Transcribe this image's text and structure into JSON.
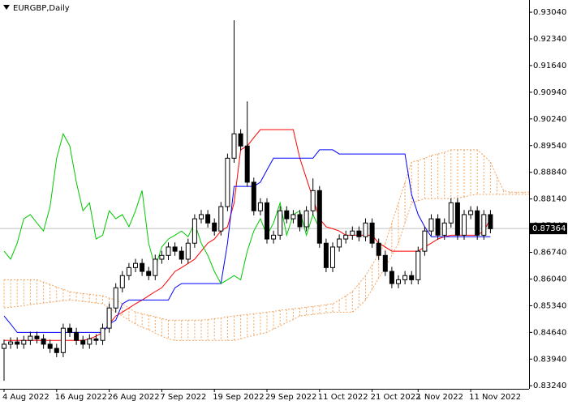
{
  "chart_data": {
    "type": "candlestick",
    "title": "EURGBP,Daily",
    "categories": [
      "4 Aug 2022",
      null,
      null,
      null,
      null,
      null,
      null,
      null,
      "16 Aug 2022",
      null,
      null,
      null,
      null,
      null,
      null,
      null,
      "26 Aug 2022",
      null,
      null,
      null,
      null,
      null,
      null,
      null,
      "7 Sep 2022",
      null,
      null,
      null,
      null,
      null,
      null,
      null,
      "19 Sep 2022",
      null,
      null,
      null,
      null,
      null,
      null,
      null,
      "29 Sep 2022",
      null,
      null,
      null,
      null,
      null,
      null,
      null,
      "11 Oct 2022",
      null,
      null,
      null,
      null,
      null,
      null,
      null,
      "21 Oct 2022",
      null,
      null,
      null,
      null,
      null,
      null,
      "1 Nov 2022",
      null,
      null,
      null,
      null,
      null,
      null,
      null,
      "11 Nov 2022",
      null,
      null,
      null,
      null,
      null,
      null,
      null,
      null,
      null
    ],
    "open": [
      0.8422,
      0.8433,
      0.8439,
      0.8433,
      0.8443,
      0.8454,
      0.8447,
      0.8433,
      0.8422,
      0.8411,
      0.8475,
      0.8464,
      0.8443,
      0.8433,
      0.8447,
      0.8443,
      0.8475,
      0.8528,
      0.8581,
      0.8613,
      0.8634,
      0.8645,
      0.8624,
      0.8613,
      0.8656,
      0.8666,
      0.8688,
      0.8677,
      0.8656,
      0.8698,
      0.8762,
      0.8773,
      0.8751,
      0.873,
      0.8794,
      0.8921,
      0.8985,
      0.8953,
      0.8858,
      0.8783,
      0.8804,
      0.8709,
      0.8719,
      0.8783,
      0.8762,
      0.8773,
      0.8741,
      0.8783,
      0.8836,
      0.8698,
      0.8634,
      0.8688,
      0.8709,
      0.8719,
      0.873,
      0.8715,
      0.8751,
      0.8698,
      0.8666,
      0.8624,
      0.8592,
      0.8602,
      0.8613,
      0.8602,
      0.8677,
      0.873,
      0.8762,
      0.8719,
      0.8751,
      0.8804,
      0.8719,
      0.8773,
      0.8783,
      0.8719,
      0.8773,
      null,
      null,
      null,
      null,
      null,
      null
    ],
    "high": [
      0.8445,
      0.8451,
      0.8451,
      0.8455,
      0.8466,
      0.8466,
      0.8459,
      0.8445,
      0.8434,
      0.8487,
      0.8487,
      0.8476,
      0.8455,
      0.8459,
      0.8459,
      0.8487,
      0.854,
      0.8593,
      0.8625,
      0.8646,
      0.8657,
      0.8657,
      0.8636,
      0.8668,
      0.8678,
      0.87,
      0.87,
      0.8689,
      0.871,
      0.8774,
      0.8785,
      0.8785,
      0.8763,
      0.8806,
      0.8933,
      0.9283,
      0.8997,
      0.907,
      0.887,
      0.8816,
      0.8816,
      0.8731,
      0.8795,
      0.8795,
      0.8785,
      0.8785,
      0.8795,
      0.8868,
      0.8848,
      0.871,
      0.87,
      0.8721,
      0.8731,
      0.8742,
      0.8742,
      0.8763,
      0.8763,
      0.871,
      0.8678,
      0.8636,
      0.8614,
      0.8625,
      0.8625,
      0.8689,
      0.8742,
      0.8774,
      0.8774,
      0.8763,
      0.8816,
      0.8816,
      0.8785,
      0.8795,
      0.8795,
      0.8785,
      0.8785,
      null,
      null,
      null,
      null,
      null,
      null
    ],
    "low": [
      0.8337,
      0.8421,
      0.8421,
      0.8421,
      0.8431,
      0.8435,
      0.8421,
      0.841,
      0.8399,
      0.8399,
      0.8452,
      0.8431,
      0.8421,
      0.8421,
      0.8431,
      0.8431,
      0.8463,
      0.8516,
      0.8569,
      0.8601,
      0.8622,
      0.8612,
      0.8601,
      0.8601,
      0.8644,
      0.8654,
      0.8665,
      0.8644,
      0.8644,
      0.8686,
      0.875,
      0.8739,
      0.8718,
      0.8718,
      0.8782,
      0.8909,
      0.8941,
      0.8846,
      0.8771,
      0.8771,
      0.8697,
      0.8697,
      0.8707,
      0.875,
      0.875,
      0.8729,
      0.8729,
      0.8771,
      0.8686,
      0.8622,
      0.8622,
      0.8676,
      0.8697,
      0.8707,
      0.8703,
      0.8703,
      0.8686,
      0.8654,
      0.8612,
      0.858,
      0.858,
      0.859,
      0.859,
      0.859,
      0.8665,
      0.8718,
      0.8707,
      0.8707,
      0.8739,
      0.8707,
      0.8707,
      0.8761,
      0.8707,
      0.8707,
      0.8724,
      null,
      null,
      null,
      null,
      null,
      null
    ],
    "close": [
      0.8433,
      0.8439,
      0.8433,
      0.8443,
      0.8454,
      0.8447,
      0.8433,
      0.8422,
      0.8411,
      0.8475,
      0.8464,
      0.8443,
      0.8433,
      0.8447,
      0.8443,
      0.8475,
      0.8528,
      0.8581,
      0.8613,
      0.8634,
      0.8645,
      0.8624,
      0.8613,
      0.8656,
      0.8666,
      0.8688,
      0.8677,
      0.8656,
      0.8698,
      0.8762,
      0.8773,
      0.8751,
      0.873,
      0.8794,
      0.8921,
      0.8985,
      0.8953,
      0.8858,
      0.8783,
      0.8804,
      0.8709,
      0.8719,
      0.8783,
      0.8762,
      0.8773,
      0.8741,
      0.8783,
      0.8836,
      0.8698,
      0.8634,
      0.8688,
      0.8709,
      0.8719,
      0.873,
      0.8715,
      0.8751,
      0.8698,
      0.8666,
      0.8624,
      0.8592,
      0.8602,
      0.8613,
      0.8602,
      0.8677,
      0.873,
      0.8762,
      0.8719,
      0.8751,
      0.8804,
      0.8719,
      0.8773,
      0.8783,
      0.8719,
      0.8773,
      0.8736,
      null,
      null,
      null,
      null,
      null,
      null
    ],
    "up_color": "#ffffff",
    "down_color": "#000000",
    "series": [
      {
        "color": "#ff0000",
        "values": [
          0.8443,
          0.8443,
          0.8443,
          0.8443,
          0.8443,
          0.8443,
          0.8443,
          0.8443,
          0.8443,
          0.8443,
          0.8443,
          0.8443,
          0.8443,
          0.8447,
          0.8454,
          0.8464,
          0.8486,
          0.8507,
          0.8517,
          0.8528,
          0.8539,
          0.8549,
          0.856,
          0.8571,
          0.8581,
          0.8602,
          0.8624,
          0.8634,
          0.8645,
          0.8656,
          0.8677,
          0.8698,
          0.8709,
          0.873,
          0.8741,
          0.8804,
          0.8943,
          0.8953,
          0.8975,
          0.8996,
          0.8996,
          0.8996,
          0.8996,
          0.8996,
          0.8996,
          0.8921,
          0.8868,
          0.8815,
          0.8762,
          0.8741,
          0.8736,
          0.873,
          0.8719,
          0.8719,
          0.8719,
          0.8719,
          0.8719,
          0.8698,
          0.8688,
          0.8677,
          0.8677,
          0.8677,
          0.8677,
          0.8677,
          0.8688,
          0.8698,
          0.8709,
          0.8715,
          0.8719,
          0.8719,
          0.8719,
          0.8719,
          0.8719,
          0.873,
          0.8762,
          null,
          null,
          null,
          null,
          null,
          null
        ]
      },
      {
        "color": "#0000ff",
        "values": [
          0.8507,
          0.8486,
          0.8464,
          0.8464,
          0.8464,
          0.8464,
          0.8464,
          0.8464,
          0.8464,
          0.8464,
          0.8464,
          0.8464,
          0.8464,
          0.8464,
          0.8464,
          0.8464,
          0.8486,
          0.8496,
          0.8539,
          0.8549,
          0.8549,
          0.8549,
          0.8549,
          0.8549,
          0.8549,
          0.8549,
          0.8581,
          0.8592,
          0.8592,
          0.8592,
          0.8592,
          0.8592,
          0.8592,
          0.8592,
          0.8698,
          0.8847,
          0.8847,
          0.8847,
          0.8847,
          0.8858,
          0.889,
          0.8921,
          0.8921,
          0.8921,
          0.8921,
          0.8921,
          0.8921,
          0.8921,
          0.8943,
          0.8943,
          0.8943,
          0.8932,
          0.8932,
          0.8932,
          0.8932,
          0.8932,
          0.8932,
          0.8932,
          0.8932,
          0.8932,
          0.8932,
          0.8932,
          0.8826,
          0.8773,
          0.8741,
          0.8715,
          0.8715,
          0.8715,
          0.8715,
          0.8715,
          0.8715,
          0.8715,
          0.8715,
          0.8715,
          0.8715,
          null,
          null,
          null,
          null,
          null,
          null
        ]
      },
      {
        "color": "#00c800",
        "values": [
          0.8677,
          0.8656,
          0.8698,
          0.8762,
          0.8773,
          0.8751,
          0.873,
          0.8794,
          0.8921,
          0.8985,
          0.8953,
          0.8858,
          0.8783,
          0.8804,
          0.8709,
          0.8719,
          0.8783,
          0.8762,
          0.8773,
          0.8741,
          0.8783,
          0.8836,
          0.8698,
          0.8634,
          0.8688,
          0.8709,
          0.8719,
          0.873,
          0.8715,
          0.8751,
          0.8698,
          0.8666,
          0.8624,
          0.8592,
          0.8602,
          0.8613,
          0.8602,
          0.8677,
          0.873,
          0.8762,
          0.8719,
          0.8751,
          0.8804,
          0.8719,
          0.8773,
          0.8783,
          0.8719,
          0.8773,
          0.8736,
          null,
          null,
          null,
          null,
          null,
          null,
          null,
          null,
          null,
          null,
          null,
          null,
          null,
          null,
          null,
          null,
          null,
          null,
          null,
          null,
          null,
          null,
          null,
          null,
          null,
          null,
          null,
          null,
          null,
          null,
          null,
          null
        ]
      }
    ],
    "cloud": {
      "color": "#f4a460",
      "span_a": [
        0.8602,
        0.8602,
        0.8602,
        0.8602,
        0.8602,
        0.8602,
        0.8596,
        0.859,
        0.8583,
        0.8577,
        0.8571,
        0.8568,
        0.8566,
        0.8564,
        0.8562,
        0.856,
        0.8554,
        0.8549,
        0.8539,
        0.8528,
        0.8517,
        0.8513,
        0.8509,
        0.8505,
        0.85,
        0.8496,
        0.8496,
        0.8496,
        0.8496,
        0.8496,
        0.8496,
        0.8498,
        0.85,
        0.8502,
        0.8505,
        0.8507,
        0.8509,
        0.8511,
        0.8513,
        0.8515,
        0.8517,
        0.8519,
        0.8522,
        0.8524,
        0.8526,
        0.8528,
        0.853,
        0.8532,
        0.8534,
        0.8537,
        0.8539,
        0.8549,
        0.856,
        0.8571,
        0.8592,
        0.8613,
        0.8641,
        0.867,
        0.8698,
        0.8751,
        0.8804,
        0.8858,
        0.8911,
        0.8915,
        0.8921,
        0.8928,
        0.8932,
        0.8936,
        0.8943,
        0.8943,
        0.8943,
        0.8943,
        0.8943,
        0.8928,
        0.8911,
        0.8872,
        0.8836,
        0.8832,
        0.8832,
        0.8832,
        0.8832
      ],
      "span_b": [
        0.8528,
        0.853,
        0.8532,
        0.8534,
        0.8537,
        0.8539,
        0.8541,
        0.8543,
        0.8545,
        0.8547,
        0.8549,
        0.8547,
        0.8545,
        0.8543,
        0.8541,
        0.8539,
        0.8528,
        0.8517,
        0.8507,
        0.8496,
        0.8486,
        0.8477,
        0.8471,
        0.8462,
        0.8454,
        0.8447,
        0.8443,
        0.8443,
        0.8443,
        0.8443,
        0.8443,
        0.8443,
        0.8443,
        0.8443,
        0.8443,
        0.8443,
        0.8447,
        0.8452,
        0.8456,
        0.846,
        0.8464,
        0.8473,
        0.8481,
        0.849,
        0.8498,
        0.8507,
        0.8509,
        0.8511,
        0.8513,
        0.8515,
        0.8517,
        0.8517,
        0.8517,
        0.8517,
        0.8532,
        0.8549,
        0.8577,
        0.8607,
        0.8634,
        0.8666,
        0.8698,
        0.8751,
        0.8804,
        0.8809,
        0.8815,
        0.8815,
        0.8815,
        0.8815,
        0.8815,
        0.8817,
        0.8819,
        0.8824,
        0.8826,
        0.8826,
        0.8826,
        0.8826,
        0.8826,
        0.8826,
        0.8826,
        0.8826,
        0.8826
      ]
    },
    "current_price": 0.87364,
    "ylim": [
      0.8316,
      0.9336
    ],
    "yticks": [
      {
        "value": 0.9304,
        "label": "0.93040"
      },
      {
        "value": 0.9234,
        "label": "0.92340"
      },
      {
        "value": 0.9164,
        "label": "0.91640"
      },
      {
        "value": 0.9094,
        "label": "0.90940"
      },
      {
        "value": 0.9024,
        "label": "0.90240"
      },
      {
        "value": 0.8954,
        "label": "0.89540"
      },
      {
        "value": 0.8884,
        "label": "0.88840"
      },
      {
        "value": 0.8814,
        "label": "0.88140"
      },
      {
        "value": 0.8744,
        "label": "0.87440"
      },
      {
        "value": 0.8674,
        "label": "0.86740"
      },
      {
        "value": 0.8604,
        "label": "0.86040"
      },
      {
        "value": 0.8534,
        "label": "0.85340"
      },
      {
        "value": 0.8464,
        "label": "0.84640"
      },
      {
        "value": 0.8394,
        "label": "0.83940"
      },
      {
        "value": 0.8324,
        "label": "0.83240"
      }
    ]
  }
}
